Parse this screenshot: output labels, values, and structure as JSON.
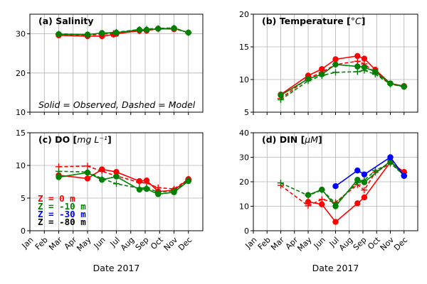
{
  "colors": {
    "surface": "#ff0000",
    "mid": "#008000",
    "deep": "#0000ff",
    "bottom": "#000000",
    "grid": "#b0b0b0"
  },
  "legend": {
    "items": [
      {
        "label": "Z =   0 m",
        "color": "#ff0000"
      },
      {
        "label": "Z =  -10 m",
        "color": "#008000"
      },
      {
        "label": "Z =  -30 m",
        "color": "#0000ff"
      },
      {
        "label": "Z =  -80 m",
        "color": "#000000"
      }
    ]
  },
  "note": "Solid = Observed, Dashed = Model",
  "chart_data": [
    {
      "id": "a",
      "type": "line",
      "title": "(a) Salinity",
      "title_parts": {
        "text": "(a) Salinity",
        "unit": ""
      },
      "xlabel": "",
      "ylabel": "",
      "x_ticks": [
        "Jan",
        "Feb",
        "Mar",
        "Apr",
        "May",
        "Jun",
        "Jul",
        "Aug",
        "Sep",
        "Oct",
        "Nov",
        "Dec"
      ],
      "show_x_tick_labels": false,
      "xlim": [
        1,
        13
      ],
      "ylim": [
        10,
        35
      ],
      "y_ticks": [
        10,
        20,
        30
      ],
      "grid": true,
      "series": [
        {
          "depth": "0 m",
          "color": "#ff0000",
          "style": "observed",
          "x": [
            3.0,
            5.0,
            6.0,
            6.8,
            7.0,
            8.6,
            9.1,
            9.9,
            11.0
          ],
          "y": [
            29.6,
            29.4,
            29.4,
            29.8,
            30.0,
            30.8,
            30.8,
            31.3,
            31.2
          ]
        },
        {
          "depth": "0 m",
          "color": "#ff0000",
          "style": "model",
          "x": [
            3.0,
            5.0,
            6.0,
            6.8,
            7.0,
            8.6,
            9.1,
            9.9,
            11.0,
            12.0
          ],
          "y": [
            29.8,
            29.6,
            29.9,
            30.1,
            30.2,
            30.7,
            31.0,
            31.2,
            31.3,
            30.3
          ]
        },
        {
          "depth": "-10 m",
          "color": "#008000",
          "style": "observed",
          "x": [
            3.0,
            5.0,
            6.0,
            7.0,
            8.6,
            9.1,
            9.9,
            11.0,
            12.0
          ],
          "y": [
            29.9,
            29.8,
            30.2,
            30.3,
            31.0,
            31.0,
            31.3,
            31.4,
            30.3
          ]
        },
        {
          "depth": "-10 m",
          "color": "#008000",
          "style": "model",
          "x": [
            3.0,
            5.0,
            6.0,
            7.0,
            8.6,
            9.1,
            9.9,
            11.0,
            12.0
          ],
          "y": [
            30.0,
            29.8,
            30.1,
            30.4,
            31.1,
            31.2,
            31.4,
            31.5,
            30.3
          ]
        }
      ]
    },
    {
      "id": "b",
      "type": "line",
      "title": "(b) Temperature [°C]",
      "title_parts": {
        "text": "(b) Temperature [",
        "unit": "°C",
        "close": "]"
      },
      "xlabel": "",
      "ylabel": "",
      "x_ticks": [
        "Jan",
        "Feb",
        "Mar",
        "Apr",
        "May",
        "Jun",
        "Jul",
        "Aug",
        "Sep",
        "Oct",
        "Nov",
        "Dec"
      ],
      "show_x_tick_labels": false,
      "xlim": [
        1,
        13
      ],
      "ylim": [
        5,
        20
      ],
      "y_ticks": [
        5,
        10,
        15,
        20
      ],
      "grid": true,
      "series": [
        {
          "depth": "0 m",
          "color": "#ff0000",
          "style": "observed",
          "x": [
            3.0,
            5.0,
            6.0,
            7.0,
            8.6,
            9.1,
            9.9,
            11.0,
            12.0
          ],
          "y": [
            7.7,
            10.6,
            11.6,
            13.1,
            13.6,
            13.2,
            11.5,
            9.4,
            9.0
          ]
        },
        {
          "depth": "0 m",
          "color": "#ff0000",
          "style": "model",
          "x": [
            3.0,
            5.0,
            6.0,
            7.0,
            8.6,
            9.1,
            9.9,
            11.0,
            12.0
          ],
          "y": [
            7.1,
            10.2,
            11.1,
            12.3,
            12.8,
            12.4,
            11.0,
            9.3,
            8.9
          ]
        },
        {
          "depth": "-10 m",
          "color": "#008000",
          "style": "observed",
          "x": [
            3.0,
            5.0,
            6.0,
            7.0,
            8.6,
            9.1,
            9.9,
            11.0,
            12.0
          ],
          "y": [
            7.6,
            10.1,
            10.8,
            12.3,
            12.0,
            11.9,
            11.2,
            9.4,
            8.9
          ]
        },
        {
          "depth": "-10 m",
          "color": "#008000",
          "style": "model",
          "x": [
            3.0,
            5.0,
            6.0,
            7.0,
            8.6,
            9.1,
            9.9,
            11.0,
            12.0
          ],
          "y": [
            6.9,
            9.8,
            10.6,
            11.1,
            11.2,
            11.4,
            10.8,
            9.3,
            8.9
          ]
        }
      ]
    },
    {
      "id": "c",
      "type": "line",
      "title": "(c) DO [mg L⁻¹]",
      "title_parts": {
        "text": "(c) DO [",
        "unit": "mg L⁻¹",
        "close": "]"
      },
      "xlabel": "Date 2017",
      "ylabel": "",
      "x_ticks": [
        "Jan",
        "Feb",
        "Mar",
        "Apr",
        "May",
        "Jun",
        "Jul",
        "Aug",
        "Sep",
        "Oct",
        "Nov",
        "Dec"
      ],
      "show_x_tick_labels": true,
      "xlim": [
        1,
        13
      ],
      "ylim": [
        0,
        15
      ],
      "y_ticks": [
        0,
        5,
        10,
        15
      ],
      "grid": true,
      "series": [
        {
          "depth": "0 m",
          "color": "#ff0000",
          "style": "observed",
          "x": [
            3.0,
            5.0,
            6.0,
            7.0,
            8.6,
            9.1,
            9.9,
            11.0,
            12.0
          ],
          "y": [
            8.5,
            8.0,
            9.4,
            9.0,
            7.6,
            7.7,
            6.0,
            6.2,
            7.9
          ]
        },
        {
          "depth": "0 m",
          "color": "#ff0000",
          "style": "model",
          "x": [
            3.0,
            5.0,
            6.0,
            7.0,
            8.6,
            9.1,
            9.9,
            11.0,
            12.0
          ],
          "y": [
            9.8,
            9.9,
            9.1,
            8.4,
            7.4,
            7.3,
            6.6,
            6.4,
            7.9
          ]
        },
        {
          "depth": "-10 m",
          "color": "#008000",
          "style": "observed",
          "x": [
            3.0,
            5.0,
            6.0,
            7.0,
            8.6,
            9.1,
            9.9,
            11.0,
            12.0
          ],
          "y": [
            8.2,
            8.9,
            7.8,
            8.3,
            6.3,
            6.4,
            5.6,
            5.9,
            7.6
          ]
        },
        {
          "depth": "-10 m",
          "color": "#008000",
          "style": "model",
          "x": [
            3.0,
            5.0,
            6.0,
            7.0,
            8.6,
            9.1,
            9.9,
            11.0,
            12.0
          ],
          "y": [
            9.1,
            9.0,
            8.0,
            7.2,
            6.5,
            6.6,
            5.9,
            6.1,
            7.7
          ]
        }
      ]
    },
    {
      "id": "d",
      "type": "line",
      "title": "(d) DIN [μM]",
      "title_parts": {
        "text": "(d) DIN  [",
        "unit": "μM",
        "close": "]"
      },
      "xlabel": "Date 2017",
      "ylabel": "",
      "x_ticks": [
        "Jan",
        "Feb",
        "Mar",
        "Apr",
        "May",
        "Jun",
        "Jul",
        "Aug",
        "Sep",
        "Oct",
        "Nov",
        "Dec"
      ],
      "show_x_tick_labels": true,
      "xlim": [
        1,
        13
      ],
      "ylim": [
        0,
        40
      ],
      "y_ticks": [
        0,
        10,
        20,
        30,
        40
      ],
      "grid": true,
      "series": [
        {
          "depth": "0 m",
          "color": "#ff0000",
          "style": "observed",
          "x": [
            5.0,
            6.0,
            7.0,
            8.6,
            9.1,
            11.0,
            12.0
          ],
          "y": [
            11.8,
            10.8,
            3.6,
            11.2,
            13.6,
            28.0,
            24.0
          ]
        },
        {
          "depth": "0 m",
          "color": "#ff0000",
          "style": "model",
          "x": [
            3.0,
            5.0,
            6.0,
            7.0,
            8.6,
            9.1,
            9.9,
            11.0,
            12.0
          ],
          "y": [
            18.5,
            10.2,
            12.8,
            11.6,
            18.8,
            16.6,
            23.8,
            27.5,
            23.6
          ]
        },
        {
          "depth": "-10 m",
          "color": "#008000",
          "style": "observed",
          "x": [
            5.0,
            6.0,
            7.0,
            8.6,
            9.1,
            11.0,
            12.0
          ],
          "y": [
            14.6,
            16.8,
            10.0,
            20.8,
            19.8,
            28.4,
            22.4
          ]
        },
        {
          "depth": "-10 m",
          "color": "#008000",
          "style": "model",
          "x": [
            3.0,
            5.0,
            6.0,
            7.0,
            8.6,
            9.1,
            9.9,
            11.0,
            12.0
          ],
          "y": [
            19.5,
            14.4,
            16.6,
            11.2,
            19.6,
            20.6,
            24.6,
            27.6,
            22.6
          ]
        },
        {
          "depth": "-30 m",
          "color": "#0000ff",
          "style": "observed",
          "x": [
            7.0,
            8.6,
            9.1,
            11.0,
            12.0
          ],
          "y": [
            18.2,
            24.6,
            23.0,
            30.0,
            22.4
          ]
        }
      ]
    }
  ]
}
